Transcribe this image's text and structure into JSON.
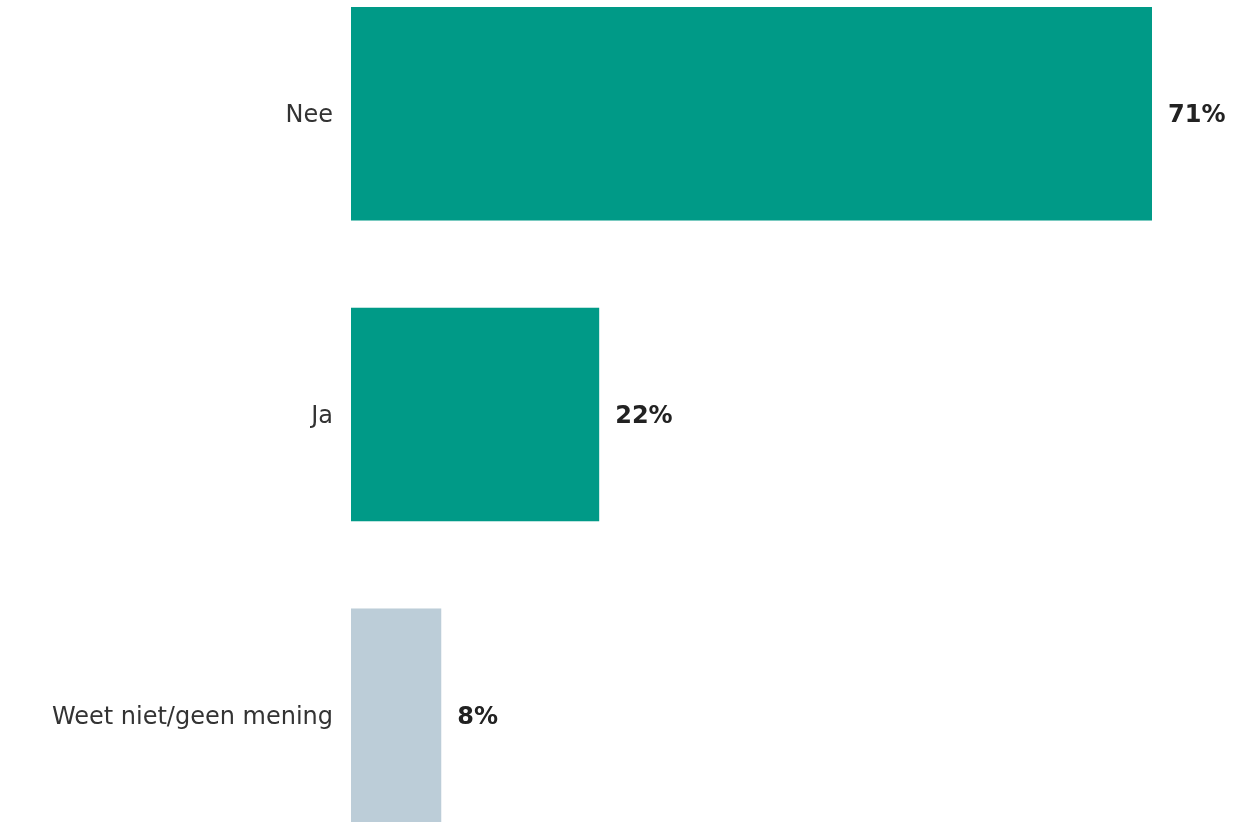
{
  "chart_data": {
    "type": "bar",
    "orientation": "horizontal",
    "categories": [
      "Nee",
      "Ja",
      "Weet niet/geen mening"
    ],
    "values": [
      71,
      22,
      8
    ],
    "colors": [
      "#009a87",
      "#009a87",
      "#bccdd8"
    ],
    "value_labels": [
      "71%",
      "22%",
      "8%"
    ]
  }
}
